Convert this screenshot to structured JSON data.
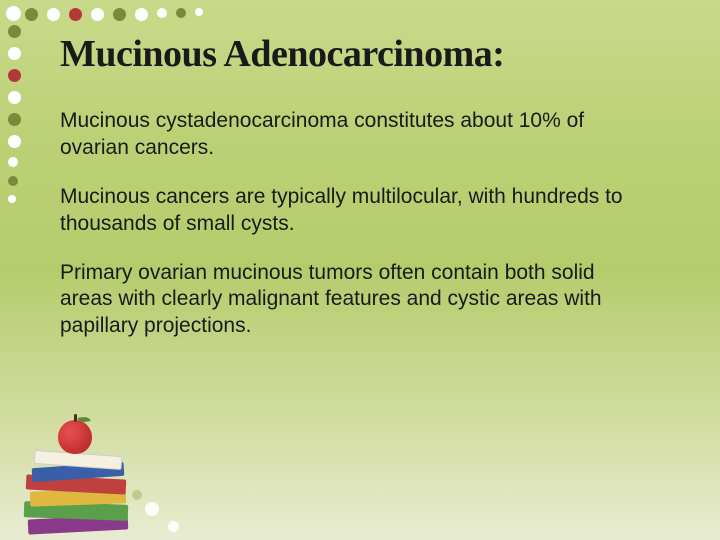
{
  "title": "Mucinous Adenocarcinoma:",
  "paragraphs": {
    "p1": "Mucinous cystadenocarcinoma constitutes about 10% of ovarian cancers.",
    "p2": "Mucinous cancers are typically multilocular, with hundreds to thousands of small cysts.",
    "p3": " Primary ovarian mucinous tumors often contain both solid areas with clearly malignant features and cystic areas with papillary projections."
  },
  "theme": {
    "background_top": "#c9d98a",
    "background_mid": "#b5cc6c",
    "background_bottom": "#e8ecd2",
    "dot_white": "#ffffff",
    "dot_olive": "#7a8a3a",
    "dot_red": "#b53838",
    "title_color": "#1a1a1a",
    "body_color": "#1a1a1a",
    "title_fontsize": 38,
    "body_fontsize": 21
  },
  "decoration": {
    "books_colors": [
      "#8a3a8a",
      "#5aa04a",
      "#e0b840",
      "#c04040",
      "#3a5fa8",
      "#f5f0e0"
    ],
    "apple_color": "#b02020"
  }
}
